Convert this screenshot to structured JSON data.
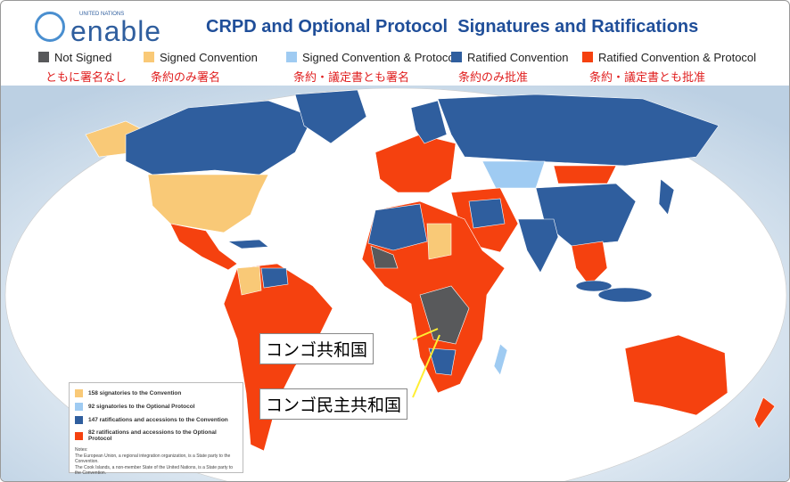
{
  "header": {
    "logo_small": "UNITED NATIONS",
    "logo": "enable",
    "title": "CRPD and Optional Protocol  Signatures and Ratifications"
  },
  "legend": [
    {
      "label": "Not Signed",
      "label_ja": "ともに署名なし",
      "color": "#58595b"
    },
    {
      "label": "Signed Convention",
      "label_ja": "条約のみ署名",
      "color": "#f9c977"
    },
    {
      "label": "Signed Convention & Protocol",
      "label_ja": "条約・議定書とも署名",
      "color": "#9fcbf2"
    },
    {
      "label": "Ratified Convention",
      "label_ja": "条約のみ批准",
      "color": "#2f5e9e"
    },
    {
      "label": "Ratified Convention & Protocol",
      "label_ja": "条約・議定書とも批准",
      "color": "#f5410f"
    }
  ],
  "stats": [
    {
      "text": "158 signatories to the Convention",
      "color": "#f9c977"
    },
    {
      "text": "92 signatories to the Optional Protocol",
      "color": "#9fcbf2"
    },
    {
      "text": "147 ratifications and accessions to the Convention",
      "color": "#2f5e9e"
    },
    {
      "text": "82 ratifications and accessions to the Optional Protocol",
      "color": "#f5410f"
    }
  ],
  "notes": [
    "Notes:",
    "The European Union, a regional integration organization, is a State party to the Convention.",
    "The Cook Islands, a non-member State of the United Nations, is a State party to the Convention."
  ],
  "callouts": [
    "コンゴ共和国",
    "コンゴ民主共和国"
  ]
}
